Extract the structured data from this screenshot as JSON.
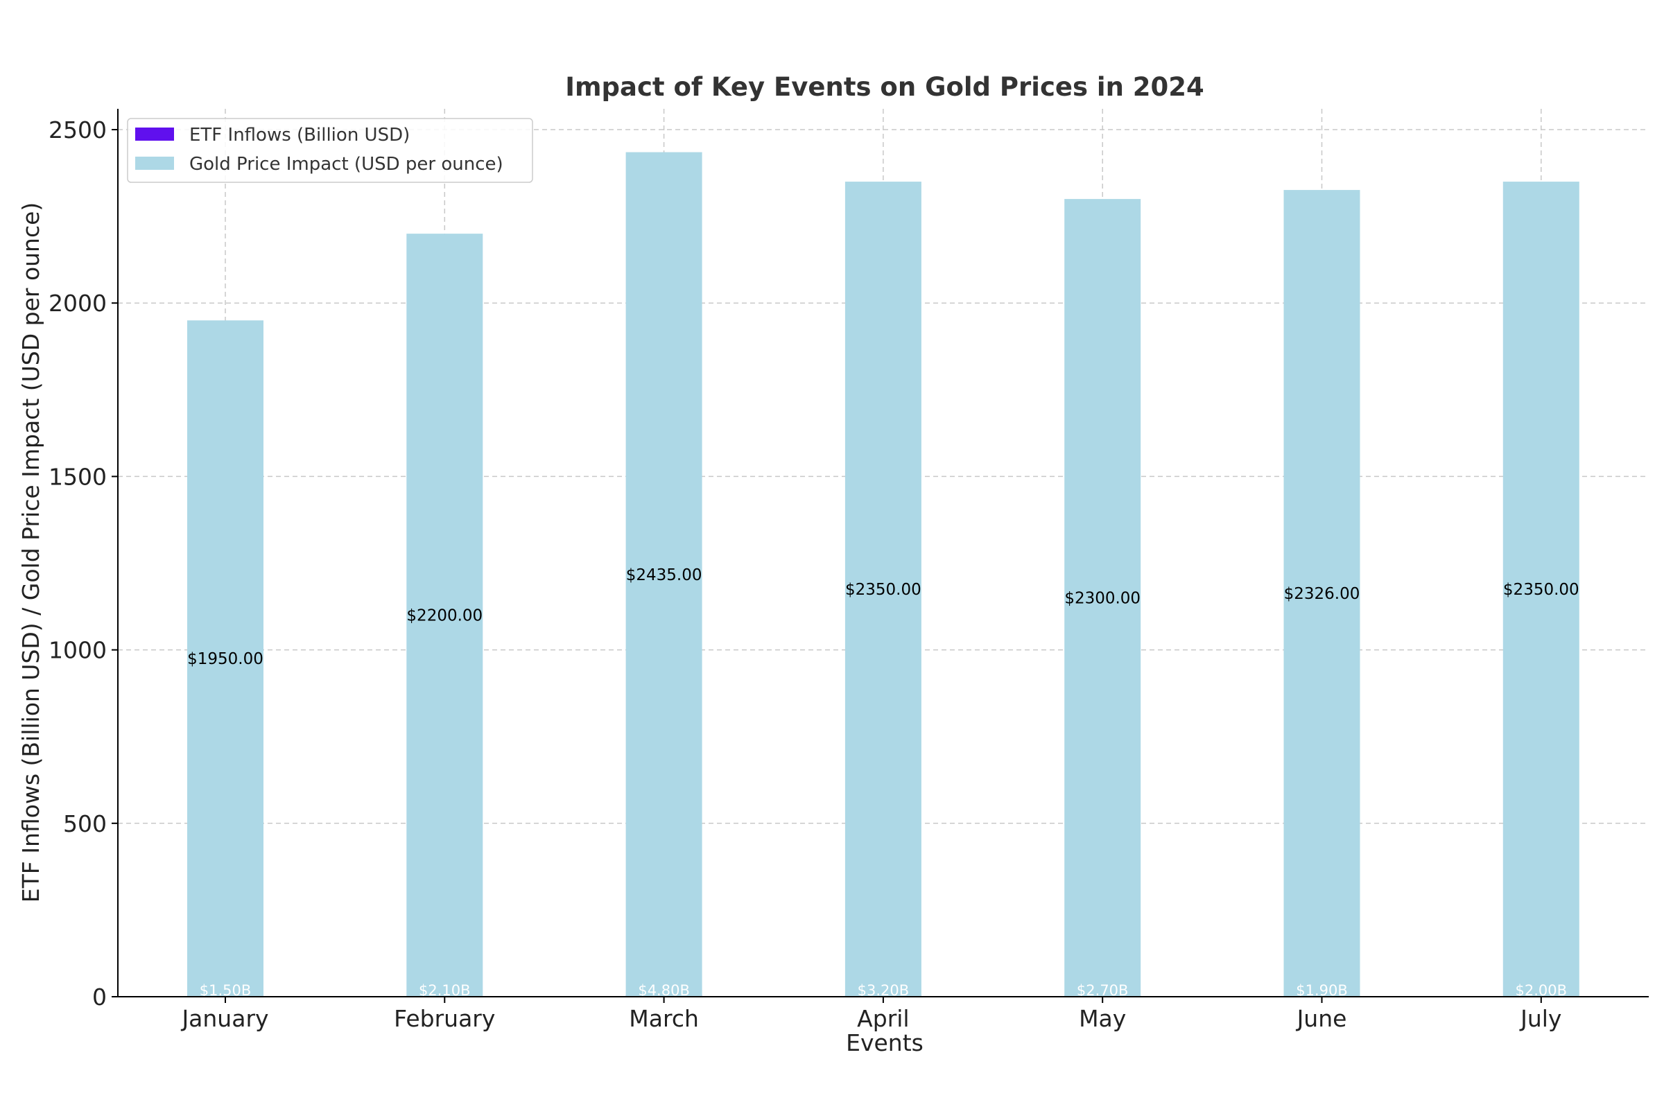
{
  "chart_data": {
    "type": "bar",
    "title": "Impact of Key Events on Gold Prices in 2024",
    "xlabel": "Events",
    "ylabel": "ETF Inflows (Billion USD) / Gold Price Impact (USD per ounce)",
    "categories": [
      "January",
      "February",
      "March",
      "April",
      "May",
      "June",
      "July"
    ],
    "ylim": [
      0,
      2560
    ],
    "yticks": [
      0,
      500,
      1000,
      1500,
      2000,
      2500
    ],
    "grid": true,
    "legend_position": "top-left",
    "series": [
      {
        "name": "ETF Inflows (Billion USD)",
        "color": "#6010ee",
        "values": [
          1.5,
          2.1,
          4.8,
          3.2,
          2.7,
          1.9,
          2.0
        ],
        "labels": [
          "$1.50B",
          "$2.10B",
          "$4.80B",
          "$3.20B",
          "$2.70B",
          "$1.90B",
          "$2.00B"
        ]
      },
      {
        "name": "Gold Price Impact (USD per ounce)",
        "color": "#add8e6",
        "values": [
          1950,
          2200,
          2435,
          2350,
          2300,
          2326,
          2350
        ],
        "labels": [
          "$1950.00",
          "$2200.00",
          "$2435.00",
          "$2350.00",
          "$2300.00",
          "$2326.00",
          "$2350.00"
        ]
      }
    ]
  }
}
